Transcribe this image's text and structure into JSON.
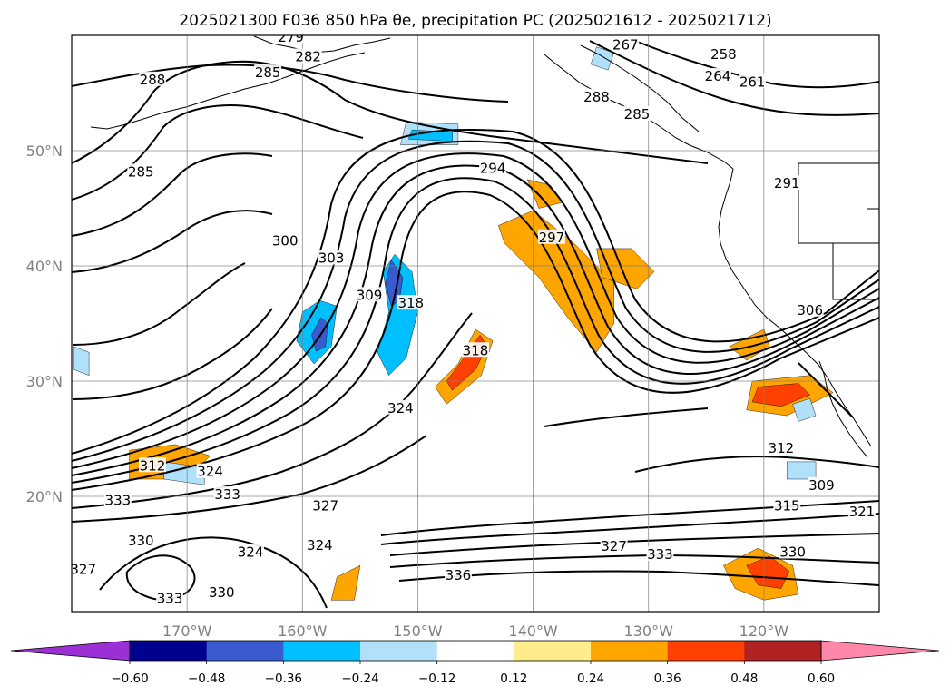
{
  "chart_data": {
    "type": "contour-map",
    "title": "2025021300 F036 850 hPa θe, precipitation PC (2025021612 - 2025021712)",
    "map": {
      "lon_range": [
        -180,
        -110
      ],
      "lat_range": [
        10,
        60
      ],
      "x_ticks": [
        {
          "lon": -170,
          "label": "170°W"
        },
        {
          "lon": -160,
          "label": "160°W"
        },
        {
          "lon": -150,
          "label": "150°W"
        },
        {
          "lon": -140,
          "label": "140°W"
        },
        {
          "lon": -130,
          "label": "130°W"
        },
        {
          "lon": -120,
          "label": "120°W"
        }
      ],
      "y_ticks": [
        {
          "lat": 20,
          "label": "20°N"
        },
        {
          "lat": 30,
          "label": "30°N"
        },
        {
          "lat": 40,
          "label": "40°N"
        },
        {
          "lat": 50,
          "label": "50°N"
        }
      ],
      "grid": true
    },
    "contour_labels": [
      {
        "text": "294",
        "lon": -143.5,
        "lat": 48.3
      },
      {
        "text": "297",
        "lon": -138.4,
        "lat": 42.3
      },
      {
        "text": "300",
        "lon": -161.5,
        "lat": 42.0
      },
      {
        "text": "303",
        "lon": -157.5,
        "lat": 40.5
      },
      {
        "text": "309",
        "lon": -154.2,
        "lat": 37.3
      },
      {
        "text": "318",
        "lon": -150.6,
        "lat": 36.6
      },
      {
        "text": "285",
        "lon": -174.0,
        "lat": 48.0
      },
      {
        "text": "288",
        "lon": -173.0,
        "lat": 56.0
      },
      {
        "text": "282",
        "lon": -159.5,
        "lat": 58.0
      },
      {
        "text": "279",
        "lon": -161.0,
        "lat": 59.7
      },
      {
        "text": "285",
        "lon": -163.0,
        "lat": 56.6
      },
      {
        "text": "258",
        "lon": -123.5,
        "lat": 58.2
      },
      {
        "text": "267",
        "lon": -132.0,
        "lat": 59.0
      },
      {
        "text": "264",
        "lon": -124.0,
        "lat": 56.3
      },
      {
        "text": "261",
        "lon": -121.0,
        "lat": 55.8
      },
      {
        "text": "288",
        "lon": -134.5,
        "lat": 54.5
      },
      {
        "text": "285",
        "lon": -131.0,
        "lat": 53.0
      },
      {
        "text": "291",
        "lon": -118.0,
        "lat": 47.0
      },
      {
        "text": "306",
        "lon": -116.0,
        "lat": 36.0
      },
      {
        "text": "324",
        "lon": -151.5,
        "lat": 27.5
      },
      {
        "text": "312",
        "lon": -118.5,
        "lat": 24.0
      },
      {
        "text": "309",
        "lon": -115.0,
        "lat": 20.8
      },
      {
        "text": "315",
        "lon": -118.0,
        "lat": 19.0
      },
      {
        "text": "321",
        "lon": -111.5,
        "lat": 18.5
      },
      {
        "text": "327",
        "lon": -133.0,
        "lat": 15.5
      },
      {
        "text": "333",
        "lon": -129.0,
        "lat": 14.8
      },
      {
        "text": "330",
        "lon": -117.5,
        "lat": 15.0
      },
      {
        "text": "336",
        "lon": -146.5,
        "lat": 13.0
      },
      {
        "text": "324",
        "lon": -158.5,
        "lat": 15.6
      },
      {
        "text": "324",
        "lon": -164.5,
        "lat": 15.0
      },
      {
        "text": "327",
        "lon": -158.0,
        "lat": 19.0
      },
      {
        "text": "333",
        "lon": -166.5,
        "lat": 20.0
      },
      {
        "text": "324",
        "lon": -168.0,
        "lat": 22.0
      },
      {
        "text": "312",
        "lon": -173.0,
        "lat": 22.5
      },
      {
        "text": "333",
        "lon": -176.0,
        "lat": 19.5
      },
      {
        "text": "330",
        "lon": -174.0,
        "lat": 16.0
      },
      {
        "text": "327",
        "lon": -179.0,
        "lat": 13.5
      },
      {
        "text": "333",
        "lon": -171.5,
        "lat": 11.0
      },
      {
        "text": "330",
        "lon": -167.0,
        "lat": 11.5
      },
      {
        "text": "318",
        "lon": -145.0,
        "lat": 32.5
      }
    ],
    "precip_pc_regions": [
      {
        "value": 0.36,
        "points": [
          [
            -142.0,
            43.0
          ],
          [
            -140.0,
            44.0
          ],
          [
            -137.0,
            41.0
          ],
          [
            -134.5,
            38.0
          ],
          [
            -134.0,
            35.5
          ],
          [
            -135.5,
            34.0
          ],
          [
            -136.5,
            37.0
          ],
          [
            -139.0,
            40.0
          ],
          [
            -141.5,
            41.5
          ]
        ]
      },
      {
        "value": 0.24,
        "points": [
          [
            -143.0,
            43.5
          ],
          [
            -140.0,
            44.8
          ],
          [
            -136.5,
            42.0
          ],
          [
            -133.0,
            38.5
          ],
          [
            -133.0,
            35.0
          ],
          [
            -134.5,
            32.5
          ],
          [
            -137.0,
            35.5
          ],
          [
            -139.5,
            39.0
          ],
          [
            -142.5,
            42.0
          ]
        ]
      },
      {
        "value": 0.24,
        "points": [
          [
            -134.5,
            41.5
          ],
          [
            -131.5,
            41.5
          ],
          [
            -129.5,
            39.5
          ],
          [
            -131.0,
            38.0
          ],
          [
            -134.0,
            39.0
          ]
        ]
      },
      {
        "value": 0.24,
        "points": [
          [
            -140.5,
            47.5
          ],
          [
            -138.5,
            47.0
          ],
          [
            -137.5,
            45.5
          ],
          [
            -139.5,
            45.0
          ]
        ]
      },
      {
        "value": 0.24,
        "points": [
          [
            -145.0,
            34.5
          ],
          [
            -143.5,
            33.5
          ],
          [
            -144.5,
            30.5
          ],
          [
            -147.5,
            28.0
          ],
          [
            -148.5,
            29.5
          ],
          [
            -146.5,
            31.5
          ]
        ]
      },
      {
        "value": 0.36,
        "points": [
          [
            -144.6,
            34.0
          ],
          [
            -144.0,
            33.0
          ],
          [
            -145.0,
            31.0
          ],
          [
            -147.0,
            29.2
          ],
          [
            -147.5,
            30.0
          ],
          [
            -146.0,
            32.0
          ]
        ]
      },
      {
        "value": 0.24,
        "points": [
          [
            -175.0,
            24.0
          ],
          [
            -171.0,
            24.5
          ],
          [
            -168.0,
            23.5
          ],
          [
            -170.0,
            21.5
          ],
          [
            -175.0,
            21.5
          ]
        ]
      },
      {
        "value": 0.24,
        "points": [
          [
            -121.0,
            30.0
          ],
          [
            -116.0,
            30.5
          ],
          [
            -114.0,
            29.0
          ],
          [
            -118.0,
            27.0
          ],
          [
            -121.5,
            27.5
          ]
        ]
      },
      {
        "value": 0.36,
        "points": [
          [
            -120.5,
            29.5
          ],
          [
            -117.0,
            29.8
          ],
          [
            -116.0,
            28.8
          ],
          [
            -118.5,
            27.8
          ],
          [
            -121.0,
            28.2
          ]
        ]
      },
      {
        "value": 0.24,
        "points": [
          [
            -123.5,
            14.0
          ],
          [
            -120.5,
            15.5
          ],
          [
            -117.5,
            14.0
          ],
          [
            -117.0,
            11.5
          ],
          [
            -120.0,
            11.0
          ],
          [
            -122.5,
            12.0
          ]
        ]
      },
      {
        "value": 0.36,
        "points": [
          [
            -121.5,
            14.0
          ],
          [
            -119.5,
            14.8
          ],
          [
            -117.8,
            13.5
          ],
          [
            -118.5,
            12.0
          ],
          [
            -120.5,
            12.3
          ]
        ]
      },
      {
        "value": 0.24,
        "points": [
          [
            -157.0,
            13.0
          ],
          [
            -155.0,
            14.0
          ],
          [
            -155.5,
            11.0
          ],
          [
            -157.5,
            11.0
          ]
        ]
      },
      {
        "value": 0.24,
        "points": [
          [
            -123.0,
            33.0
          ],
          [
            -120.0,
            34.5
          ],
          [
            -119.5,
            33.0
          ],
          [
            -121.5,
            31.8
          ]
        ]
      },
      {
        "value": -0.36,
        "points": [
          [
            -158.5,
            37.0
          ],
          [
            -157.0,
            36.5
          ],
          [
            -157.5,
            33.0
          ],
          [
            -159.0,
            31.5
          ],
          [
            -160.5,
            33.5
          ],
          [
            -160.0,
            36.0
          ]
        ]
      },
      {
        "value": -0.48,
        "points": [
          [
            -158.4,
            35.5
          ],
          [
            -157.8,
            35.0
          ],
          [
            -158.0,
            33.0
          ],
          [
            -158.8,
            32.6
          ],
          [
            -159.2,
            34.0
          ]
        ]
      },
      {
        "value": -0.36,
        "points": [
          [
            -152.0,
            41.0
          ],
          [
            -150.5,
            39.5
          ],
          [
            -150.0,
            36.0
          ],
          [
            -151.0,
            32.0
          ],
          [
            -152.5,
            30.5
          ],
          [
            -153.5,
            32.5
          ],
          [
            -152.5,
            36.0
          ],
          [
            -153.0,
            39.5
          ]
        ]
      },
      {
        "value": -0.48,
        "points": [
          [
            -152.3,
            40.5
          ],
          [
            -151.3,
            39.0
          ],
          [
            -151.6,
            37.0
          ],
          [
            -152.3,
            36.5
          ],
          [
            -152.8,
            38.5
          ]
        ]
      },
      {
        "value": -0.24,
        "points": [
          [
            -151.0,
            52.5
          ],
          [
            -146.5,
            52.3
          ],
          [
            -146.5,
            50.5
          ],
          [
            -151.5,
            50.5
          ]
        ]
      },
      {
        "value": -0.36,
        "points": [
          [
            -150.5,
            51.8
          ],
          [
            -147.0,
            51.6
          ],
          [
            -147.0,
            50.8
          ],
          [
            -150.8,
            51.0
          ]
        ]
      },
      {
        "value": -0.24,
        "points": [
          [
            -172.0,
            23.0
          ],
          [
            -168.5,
            22.5
          ],
          [
            -168.5,
            21.0
          ],
          [
            -172.0,
            21.5
          ]
        ]
      },
      {
        "value": -0.24,
        "points": [
          [
            -118.0,
            23.0
          ],
          [
            -115.5,
            23.0
          ],
          [
            -115.5,
            21.5
          ],
          [
            -118.0,
            21.5
          ]
        ]
      },
      {
        "value": -0.24,
        "points": [
          [
            -179.8,
            33.0
          ],
          [
            -178.5,
            32.5
          ],
          [
            -178.5,
            30.5
          ],
          [
            -179.8,
            31.0
          ]
        ]
      },
      {
        "value": -0.24,
        "points": [
          [
            -134.5,
            59.0
          ],
          [
            -133.0,
            58.5
          ],
          [
            -133.5,
            57.0
          ],
          [
            -135.0,
            57.5
          ]
        ]
      },
      {
        "value": -0.24,
        "points": [
          [
            -117.5,
            28.0
          ],
          [
            -116.0,
            28.5
          ],
          [
            -115.5,
            27.0
          ],
          [
            -117.0,
            26.5
          ]
        ]
      }
    ],
    "colorbar": {
      "ticks": [
        -0.6,
        -0.48,
        -0.36,
        -0.24,
        -0.12,
        0.12,
        0.24,
        0.36,
        0.48,
        0.6
      ],
      "tick_labels": [
        "−0.60",
        "−0.48",
        "−0.36",
        "−0.24",
        "−0.12",
        "0.12",
        "0.24",
        "0.36",
        "0.48",
        "0.60"
      ],
      "colors": [
        "#9b30d4",
        "#00008f",
        "#3a5bd0",
        "#00bfff",
        "#b0e0fa",
        "#ffffff",
        "#ffec8b",
        "#ffa500",
        "#ff4000",
        "#b22222",
        "#ff88aa"
      ],
      "extend": "both"
    }
  }
}
